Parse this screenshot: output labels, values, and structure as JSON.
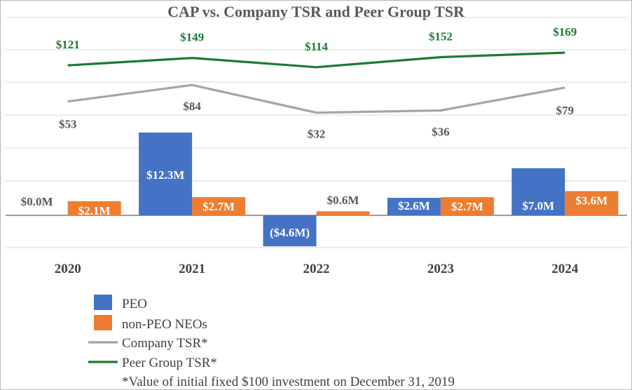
{
  "chart_data": {
    "type": "bar",
    "title": "CAP vs. Company TSR and Peer Group TSR",
    "categories": [
      "2020",
      "2021",
      "2022",
      "2023",
      "2024"
    ],
    "series": [
      {
        "name": "PEO",
        "kind": "bar",
        "color": "#4472c4",
        "values": [
          0.0,
          12.3,
          -4.6,
          2.6,
          7.0
        ],
        "labels": [
          "$0.0M",
          "$12.3M",
          "($4.6M)",
          "$2.6M",
          "$7.0M"
        ]
      },
      {
        "name": "non-PEO NEOs",
        "kind": "bar",
        "color": "#ed7d31",
        "values": [
          2.1,
          2.7,
          0.6,
          2.7,
          3.6
        ],
        "labels": [
          "$2.1M",
          "$2.7M",
          "$0.6M",
          "$2.7M",
          "$3.6M"
        ]
      },
      {
        "name": "Company TSR*",
        "kind": "line",
        "color": "#a5a5a5",
        "values": [
          53,
          84,
          32,
          36,
          79
        ],
        "labels": [
          "$53",
          "$84",
          "$32",
          "$36",
          "$79"
        ]
      },
      {
        "name": "Peer Group TSR*",
        "kind": "line",
        "color": "#1b7a33",
        "values": [
          121,
          149,
          114,
          152,
          169
        ],
        "labels": [
          "$121",
          "$149",
          "$114",
          "$152",
          "$169"
        ]
      }
    ],
    "footnote": "*Value of initial fixed $100 investment on December 31, 2019",
    "grid": true,
    "legend": "bottom-left"
  }
}
